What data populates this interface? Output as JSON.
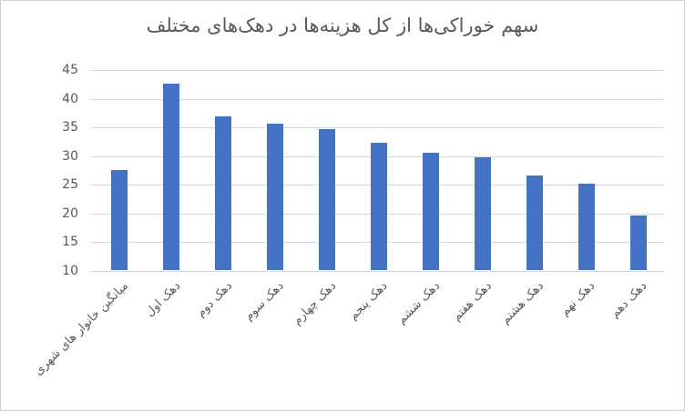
{
  "chart_data": {
    "type": "bar",
    "title": "سهم خوراکی‌ها از کل هزینه‌ها در دهک‌های مختلف",
    "categories": [
      "میانگین خانوار های شهری",
      "دهک اول",
      "دهک دوم",
      "دهک سوم",
      "دهک چهارم",
      "دهک پنجم",
      "دهک ششم",
      "دهک هفتم",
      "دهک هشتم",
      "دهک نهم",
      "دهک دهم"
    ],
    "values": [
      27.5,
      42.5,
      36.8,
      35.5,
      34.5,
      32.2,
      30.5,
      29.7,
      26.5,
      25.0,
      19.5
    ],
    "xlabel": "",
    "ylabel": "",
    "ylim": [
      10,
      45
    ],
    "yticks": [
      45,
      40,
      35,
      30,
      25,
      20,
      15,
      10
    ],
    "grid": true,
    "legend": "none",
    "colors": {
      "bar": "#4472c4",
      "gridline": "#d9d9d9",
      "axis_text": "#595959",
      "title_text": "#595959",
      "frame_border": "#d0cece"
    }
  }
}
